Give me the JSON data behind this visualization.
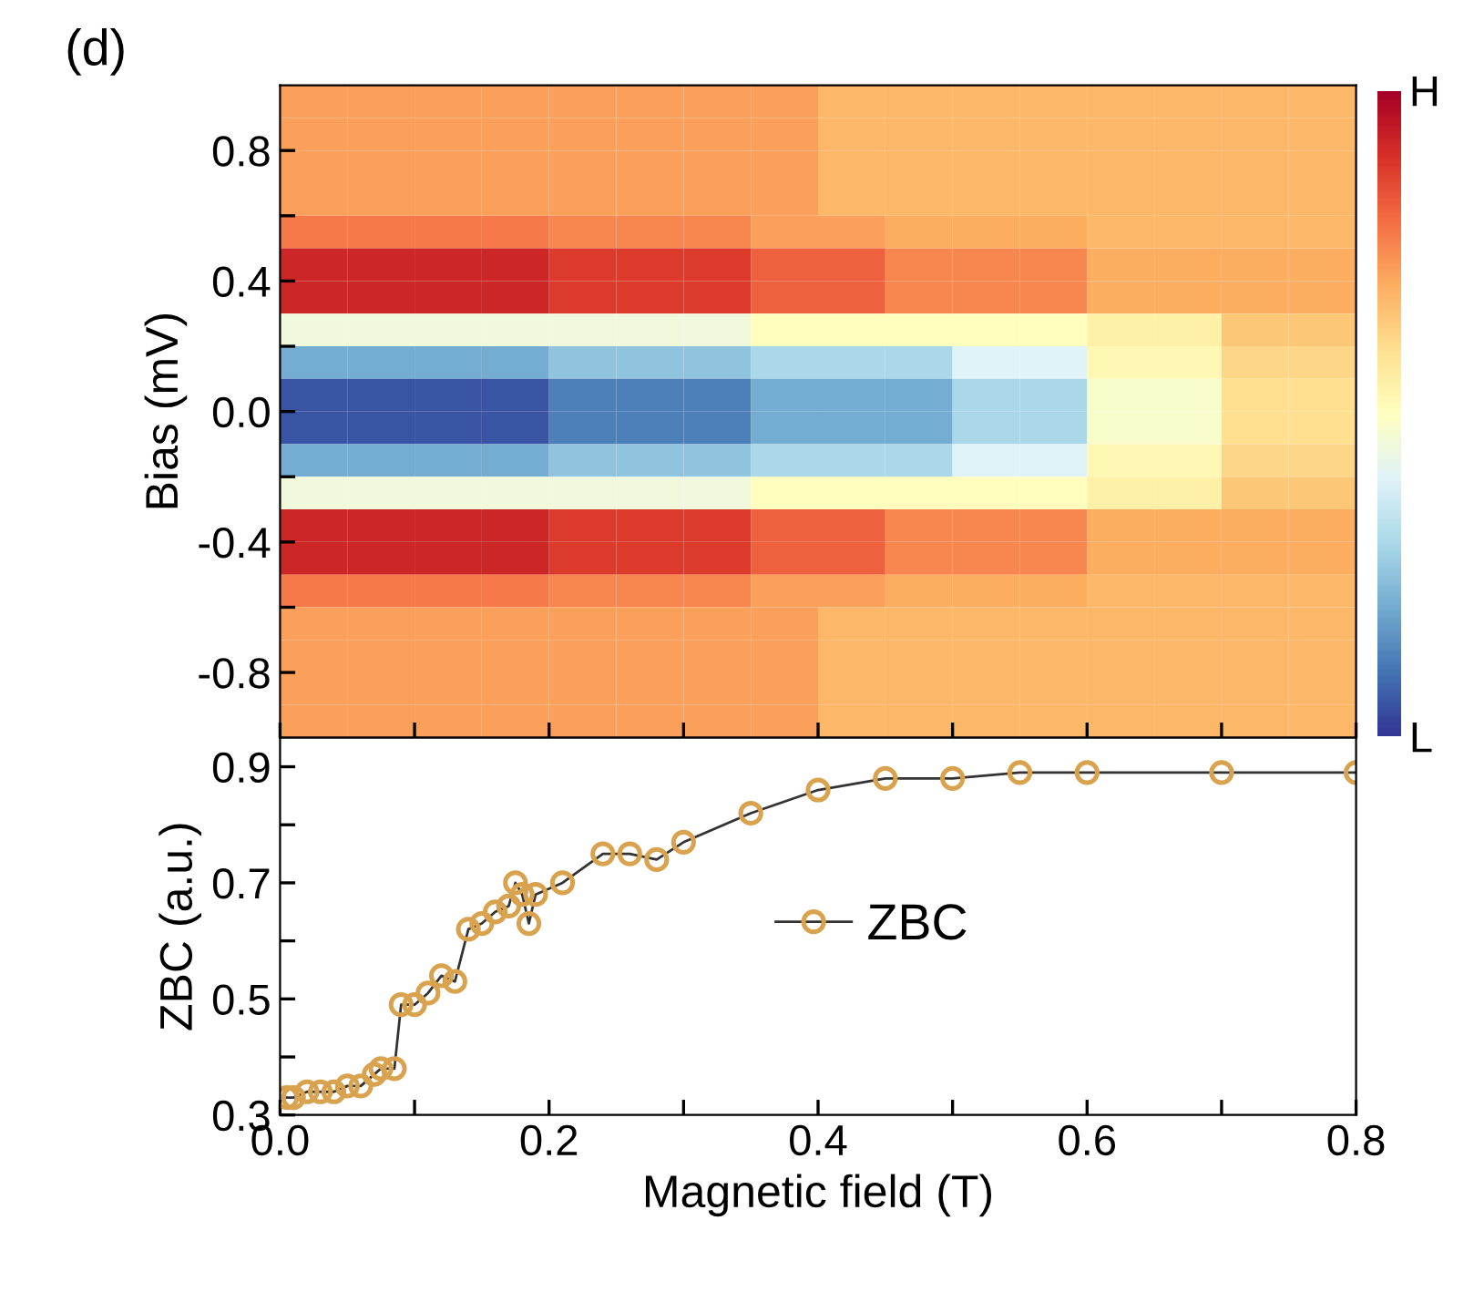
{
  "chart_data": [
    {
      "type": "heatmap",
      "title": "(d)",
      "ylabel": "Bias (mV)",
      "x": [
        0.025,
        0.075,
        0.125,
        0.175,
        0.225,
        0.275,
        0.325,
        0.375,
        0.425,
        0.475,
        0.525,
        0.575,
        0.625,
        0.675,
        0.725,
        0.775
      ],
      "y": [
        0.95,
        0.85,
        0.75,
        0.65,
        0.55,
        0.45,
        0.35,
        0.25,
        0.15,
        0.05,
        -0.05,
        -0.15,
        -0.25,
        -0.35,
        -0.45,
        -0.55,
        -0.65,
        -0.75,
        -0.85,
        -0.95
      ],
      "cells": [
        [
          0.72,
          0.72,
          0.72,
          0.72,
          0.72,
          0.72,
          0.72,
          0.72,
          0.68,
          0.68,
          0.68,
          0.68,
          0.68,
          0.68,
          0.68,
          0.68
        ],
        [
          0.72,
          0.72,
          0.72,
          0.72,
          0.72,
          0.72,
          0.72,
          0.72,
          0.68,
          0.68,
          0.68,
          0.68,
          0.68,
          0.68,
          0.68,
          0.68
        ],
        [
          0.72,
          0.72,
          0.72,
          0.72,
          0.72,
          0.72,
          0.72,
          0.72,
          0.68,
          0.68,
          0.68,
          0.68,
          0.68,
          0.68,
          0.68,
          0.68
        ],
        [
          0.72,
          0.72,
          0.72,
          0.72,
          0.72,
          0.72,
          0.72,
          0.72,
          0.68,
          0.68,
          0.68,
          0.68,
          0.68,
          0.68,
          0.68,
          0.68
        ],
        [
          0.78,
          0.78,
          0.78,
          0.78,
          0.76,
          0.76,
          0.76,
          0.72,
          0.72,
          0.7,
          0.7,
          0.7,
          0.68,
          0.68,
          0.68,
          0.68
        ],
        [
          0.92,
          0.92,
          0.92,
          0.92,
          0.88,
          0.88,
          0.88,
          0.82,
          0.82,
          0.76,
          0.76,
          0.76,
          0.7,
          0.7,
          0.7,
          0.7
        ],
        [
          0.92,
          0.92,
          0.92,
          0.92,
          0.88,
          0.88,
          0.88,
          0.82,
          0.82,
          0.76,
          0.76,
          0.76,
          0.7,
          0.7,
          0.7,
          0.7
        ],
        [
          0.45,
          0.45,
          0.45,
          0.45,
          0.45,
          0.45,
          0.45,
          0.5,
          0.5,
          0.5,
          0.5,
          0.5,
          0.55,
          0.55,
          0.65,
          0.65
        ],
        [
          0.2,
          0.2,
          0.2,
          0.2,
          0.25,
          0.25,
          0.25,
          0.3,
          0.3,
          0.3,
          0.4,
          0.4,
          0.52,
          0.52,
          0.62,
          0.62
        ],
        [
          0.05,
          0.05,
          0.05,
          0.05,
          0.12,
          0.12,
          0.12,
          0.2,
          0.2,
          0.2,
          0.3,
          0.3,
          0.48,
          0.48,
          0.6,
          0.6
        ],
        [
          0.05,
          0.05,
          0.05,
          0.05,
          0.12,
          0.12,
          0.12,
          0.2,
          0.2,
          0.2,
          0.3,
          0.3,
          0.48,
          0.48,
          0.6,
          0.6
        ],
        [
          0.2,
          0.2,
          0.2,
          0.2,
          0.25,
          0.25,
          0.25,
          0.3,
          0.3,
          0.3,
          0.4,
          0.4,
          0.52,
          0.52,
          0.62,
          0.62
        ],
        [
          0.45,
          0.45,
          0.45,
          0.45,
          0.45,
          0.45,
          0.45,
          0.5,
          0.5,
          0.5,
          0.5,
          0.5,
          0.55,
          0.55,
          0.65,
          0.65
        ],
        [
          0.92,
          0.92,
          0.92,
          0.92,
          0.88,
          0.88,
          0.88,
          0.82,
          0.82,
          0.76,
          0.76,
          0.76,
          0.7,
          0.7,
          0.7,
          0.7
        ],
        [
          0.92,
          0.92,
          0.92,
          0.92,
          0.88,
          0.88,
          0.88,
          0.82,
          0.82,
          0.76,
          0.76,
          0.76,
          0.7,
          0.7,
          0.7,
          0.7
        ],
        [
          0.78,
          0.78,
          0.78,
          0.78,
          0.76,
          0.76,
          0.76,
          0.72,
          0.72,
          0.7,
          0.7,
          0.7,
          0.68,
          0.68,
          0.68,
          0.68
        ],
        [
          0.72,
          0.72,
          0.72,
          0.72,
          0.72,
          0.72,
          0.72,
          0.72,
          0.68,
          0.68,
          0.68,
          0.68,
          0.68,
          0.68,
          0.68,
          0.68
        ],
        [
          0.72,
          0.72,
          0.72,
          0.72,
          0.72,
          0.72,
          0.72,
          0.72,
          0.68,
          0.68,
          0.68,
          0.68,
          0.68,
          0.68,
          0.68,
          0.68
        ],
        [
          0.72,
          0.72,
          0.72,
          0.72,
          0.72,
          0.72,
          0.72,
          0.72,
          0.68,
          0.68,
          0.68,
          0.68,
          0.68,
          0.68,
          0.68,
          0.68
        ],
        [
          0.72,
          0.72,
          0.72,
          0.72,
          0.72,
          0.72,
          0.72,
          0.72,
          0.68,
          0.68,
          0.68,
          0.68,
          0.68,
          0.68,
          0.68,
          0.68
        ]
      ],
      "clim": [
        0,
        1
      ],
      "cticks": [
        {
          "value": 0,
          "label": "L"
        },
        {
          "value": 1,
          "label": "H"
        }
      ],
      "xlim": [
        0,
        0.8
      ],
      "ylim": [
        -1,
        1
      ],
      "xticks": [
        {
          "value": 0,
          "label": null
        },
        {
          "value": 0.1,
          "label": null
        },
        {
          "value": 0.2,
          "label": null
        },
        {
          "value": 0.3,
          "label": null
        },
        {
          "value": 0.4,
          "label": null
        },
        {
          "value": 0.5,
          "label": null
        },
        {
          "value": 0.6,
          "label": null
        },
        {
          "value": 0.7,
          "label": null
        },
        {
          "value": 0.8,
          "label": null
        }
      ],
      "yticks": [
        -0.8,
        {
          "value": -0.6,
          "label": null
        },
        -0.4,
        {
          "value": -0.2,
          "label": null
        },
        {
          "value": 0,
          "label": "0.0"
        },
        {
          "value": 0.2,
          "label": null
        },
        0.4,
        {
          "value": 0.6,
          "label": null
        },
        0.8
      ],
      "tick_labels": "y"
    },
    {
      "type": "line",
      "xlabel": "Magnetic field (T)",
      "ylabel": "ZBC (a.u.)",
      "x": [
        0.005,
        0.01,
        0.02,
        0.03,
        0.04,
        0.05,
        0.06,
        0.07,
        0.075,
        0.085,
        0.09,
        0.1,
        0.11,
        0.12,
        0.13,
        0.14,
        0.15,
        0.16,
        0.17,
        0.175,
        0.18,
        0.185,
        0.19,
        0.21,
        0.24,
        0.26,
        0.28,
        0.3,
        0.35,
        0.4,
        0.45,
        0.5,
        0.55,
        0.6,
        0.7,
        0.8
      ],
      "series": [
        {
          "name": "ZBC",
          "color": "#d9a24e",
          "values": [
            0.33,
            0.33,
            0.34,
            0.34,
            0.34,
            0.35,
            0.35,
            0.37,
            0.38,
            0.38,
            0.49,
            0.49,
            0.51,
            0.54,
            0.53,
            0.62,
            0.63,
            0.65,
            0.66,
            0.7,
            0.68,
            0.63,
            0.68,
            0.7,
            0.75,
            0.75,
            0.74,
            0.77,
            0.82,
            0.86,
            0.88,
            0.88,
            0.89,
            0.89,
            0.89,
            0.89
          ]
        }
      ],
      "xlim": [
        0,
        0.8
      ],
      "ylim": [
        0.3,
        0.95
      ],
      "xticks": [
        {
          "value": 0,
          "label": "0.0"
        },
        {
          "value": 0.1,
          "label": null
        },
        0.2,
        {
          "value": 0.3,
          "label": null
        },
        0.4,
        {
          "value": 0.5,
          "label": null
        },
        0.6,
        {
          "value": 0.7,
          "label": null
        },
        0.8
      ],
      "yticks": [
        0.3,
        {
          "value": 0.4,
          "label": null
        },
        0.5,
        {
          "value": 0.6,
          "label": null
        },
        0.7,
        {
          "value": 0.8,
          "label": null
        },
        0.9
      ],
      "legend": "center",
      "marker": "circle",
      "line_style": "solid"
    }
  ]
}
